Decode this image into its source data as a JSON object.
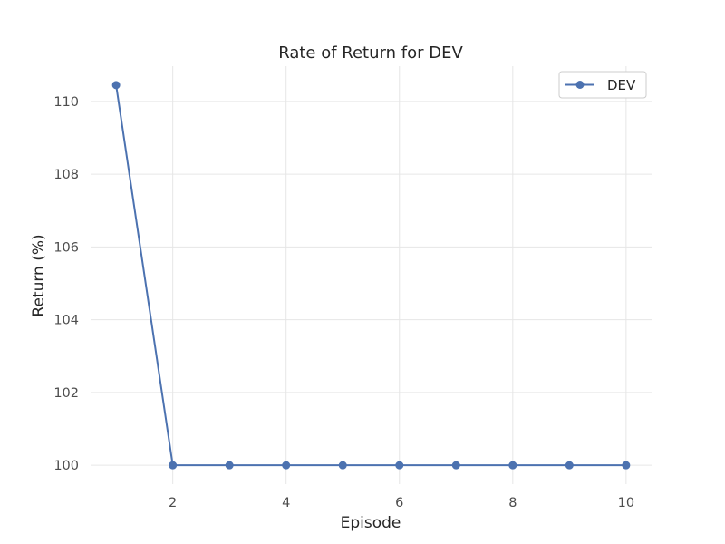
{
  "chart_data": {
    "type": "line",
    "title": "Rate of Return for DEV",
    "xlabel": "Episode",
    "ylabel": "Return (%)",
    "x": [
      1,
      2,
      3,
      4,
      5,
      6,
      7,
      8,
      9,
      10
    ],
    "series": [
      {
        "name": "DEV",
        "values": [
          110.45,
          100.0,
          100.0,
          100.0,
          100.0,
          100.0,
          100.0,
          100.0,
          100.0,
          100.0
        ],
        "color": "#4c72b0",
        "marker": "circle"
      }
    ],
    "xticks": [
      2,
      4,
      6,
      8,
      10
    ],
    "yticks": [
      100,
      102,
      104,
      106,
      108,
      110
    ],
    "xlim": [
      0.55,
      10.45
    ],
    "ylim": [
      99.48,
      110.97
    ],
    "grid": true,
    "legend_position": "top-right"
  }
}
